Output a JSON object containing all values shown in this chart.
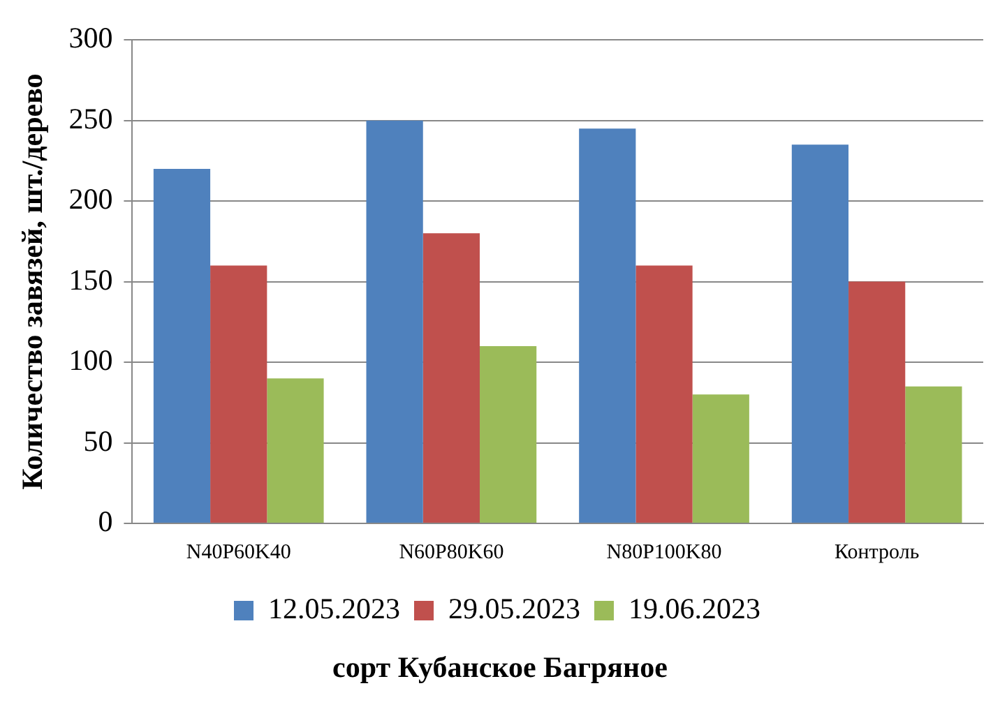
{
  "chart_data": {
    "type": "bar",
    "xlabel": "сорт Кубанское Багряное",
    "ylabel": "Количество завязей, шт./дерево",
    "categories": [
      "N40P60K40",
      "N60P80K60",
      "N80P100K80",
      "Контроль"
    ],
    "series": [
      {
        "name": "12.05.2023",
        "color": "#4f81bd",
        "values": [
          220,
          250,
          245,
          235
        ]
      },
      {
        "name": "29.05.2023",
        "color": "#c0504d",
        "values": [
          160,
          180,
          160,
          150
        ]
      },
      {
        "name": "19.06.2023",
        "color": "#9bbb59",
        "values": [
          90,
          110,
          80,
          85
        ]
      }
    ],
    "ylim": [
      0,
      300
    ],
    "yticks": [
      0,
      50,
      100,
      150,
      200,
      250,
      300
    ],
    "grid": "y",
    "legend": "bottom"
  }
}
